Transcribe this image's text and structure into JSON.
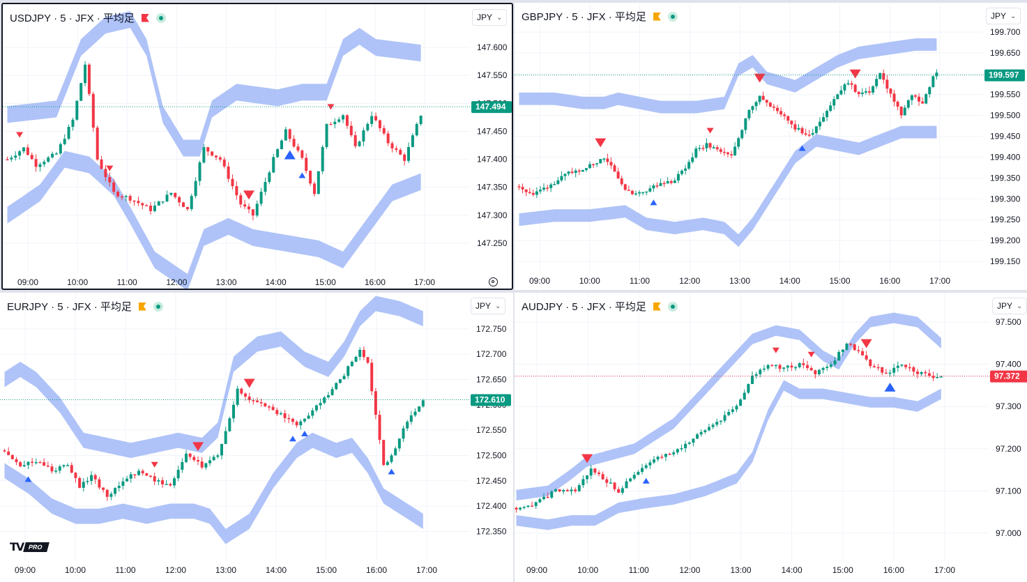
{
  "colors": {
    "up": "#089981",
    "down": "#f23645",
    "band": "#a6bdf7",
    "buy": "#2962ff",
    "sell": "#f23645",
    "grid": "#f0f3fa",
    "text": "#131722"
  },
  "chart_data": [
    {
      "type": "candlestick",
      "symbol": "USDJPY",
      "interval": "5",
      "source": "JFX",
      "style": "平均足",
      "title": "USDJPY · 5 · JFX · 平均足",
      "flag_color": "#f23645",
      "currency": "JPY",
      "ylim": [
        147.2,
        147.64
      ],
      "y_ticks": [
        "147.600",
        "147.550",
        "147.500",
        "147.450",
        "147.400",
        "147.350",
        "147.300",
        "147.250"
      ],
      "x_ticks": [
        "09:00",
        "10:00",
        "11:00",
        "12:00",
        "13:00",
        "14:00",
        "15:00",
        "16:00",
        "17:00"
      ],
      "last_price": "147.494",
      "last_dir": "up",
      "path": [
        [
          0,
          147.4
        ],
        [
          4,
          147.42
        ],
        [
          7,
          147.39
        ],
        [
          12,
          147.41
        ],
        [
          16,
          147.47
        ],
        [
          19,
          147.57
        ],
        [
          22,
          147.4
        ],
        [
          26,
          147.34
        ],
        [
          30,
          147.33
        ],
        [
          35,
          147.31
        ],
        [
          40,
          147.34
        ],
        [
          44,
          147.31
        ],
        [
          48,
          147.42
        ],
        [
          52,
          147.4
        ],
        [
          57,
          147.32
        ],
        [
          60,
          147.3
        ],
        [
          65,
          147.4
        ],
        [
          68,
          147.45
        ],
        [
          72,
          147.4
        ],
        [
          75,
          147.34
        ],
        [
          78,
          147.46
        ],
        [
          82,
          147.48
        ],
        [
          85,
          147.42
        ],
        [
          89,
          147.48
        ],
        [
          93,
          147.43
        ],
        [
          97,
          147.4
        ],
        [
          101,
          147.48
        ]
      ],
      "upper": [
        [
          0,
          147.48
        ],
        [
          12,
          147.49
        ],
        [
          18,
          147.6
        ],
        [
          24,
          147.64
        ],
        [
          30,
          147.65
        ],
        [
          34,
          147.6
        ],
        [
          38,
          147.48
        ],
        [
          43,
          147.42
        ],
        [
          47,
          147.42
        ],
        [
          50,
          147.49
        ],
        [
          56,
          147.52
        ],
        [
          66,
          147.51
        ],
        [
          72,
          147.52
        ],
        [
          78,
          147.52
        ],
        [
          82,
          147.6
        ],
        [
          86,
          147.62
        ],
        [
          90,
          147.6
        ],
        [
          101,
          147.59
        ]
      ],
      "lower": [
        [
          0,
          147.3
        ],
        [
          8,
          147.34
        ],
        [
          14,
          147.4
        ],
        [
          20,
          147.39
        ],
        [
          26,
          147.35
        ],
        [
          30,
          147.3
        ],
        [
          36,
          147.22
        ],
        [
          44,
          147.18
        ],
        [
          48,
          147.26
        ],
        [
          54,
          147.28
        ],
        [
          60,
          147.26
        ],
        [
          68,
          147.25
        ],
        [
          76,
          147.24
        ],
        [
          82,
          147.22
        ],
        [
          88,
          147.28
        ],
        [
          94,
          147.34
        ],
        [
          101,
          147.36
        ]
      ],
      "band_width": 0.03,
      "signals": [
        {
          "i": 3,
          "dir": "sell",
          "size": "small"
        },
        {
          "i": 25,
          "dir": "sell",
          "size": "small"
        },
        {
          "i": 59,
          "dir": "sell",
          "size": "big"
        },
        {
          "i": 69,
          "dir": "buy",
          "size": "big"
        },
        {
          "i": 72,
          "dir": "buy",
          "size": "small"
        },
        {
          "i": 79,
          "dir": "sell",
          "size": "small"
        }
      ]
    },
    {
      "type": "candlestick",
      "symbol": "GBPJPY",
      "interval": "5",
      "source": "JFX",
      "style": "平均足",
      "title": "GBPJPY · 5 · JFX · 平均足",
      "flag_color": "#f7a600",
      "currency": "JPY",
      "ylim": [
        199.13,
        199.72
      ],
      "y_ticks": [
        "199.700",
        "199.650",
        "199.600",
        "199.550",
        "199.500",
        "199.450",
        "199.400",
        "199.350",
        "199.300",
        "199.250",
        "199.200",
        "199.150"
      ],
      "x_ticks": [
        "09:00",
        "10:00",
        "11:00",
        "12:00",
        "13:00",
        "14:00",
        "15:00",
        "16:00",
        "17:00"
      ],
      "last_price": "199.597",
      "last_dir": "up",
      "path": [
        [
          0,
          199.33
        ],
        [
          4,
          199.31
        ],
        [
          8,
          199.33
        ],
        [
          14,
          199.36
        ],
        [
          20,
          199.38
        ],
        [
          24,
          199.4
        ],
        [
          27,
          199.37
        ],
        [
          29,
          199.33
        ],
        [
          33,
          199.31
        ],
        [
          38,
          199.33
        ],
        [
          43,
          199.34
        ],
        [
          47,
          199.37
        ],
        [
          50,
          199.42
        ],
        [
          53,
          199.43
        ],
        [
          57,
          199.41
        ],
        [
          60,
          199.4
        ],
        [
          62,
          199.45
        ],
        [
          65,
          199.51
        ],
        [
          68,
          199.55
        ],
        [
          71,
          199.52
        ],
        [
          75,
          199.5
        ],
        [
          78,
          199.47
        ],
        [
          82,
          199.45
        ],
        [
          86,
          199.5
        ],
        [
          90,
          199.55
        ],
        [
          93,
          199.58
        ],
        [
          96,
          199.55
        ],
        [
          99,
          199.56
        ],
        [
          102,
          199.6
        ],
        [
          105,
          199.55
        ],
        [
          108,
          199.5
        ],
        [
          111,
          199.55
        ],
        [
          114,
          199.53
        ],
        [
          117,
          199.59
        ],
        [
          118,
          199.6
        ]
      ],
      "upper": [
        [
          0,
          199.54
        ],
        [
          10,
          199.54
        ],
        [
          18,
          199.53
        ],
        [
          24,
          199.53
        ],
        [
          28,
          199.54
        ],
        [
          34,
          199.53
        ],
        [
          40,
          199.52
        ],
        [
          50,
          199.52
        ],
        [
          58,
          199.53
        ],
        [
          62,
          199.61
        ],
        [
          66,
          199.63
        ],
        [
          70,
          199.59
        ],
        [
          78,
          199.57
        ],
        [
          84,
          199.6
        ],
        [
          90,
          199.63
        ],
        [
          96,
          199.65
        ],
        [
          104,
          199.66
        ],
        [
          112,
          199.67
        ],
        [
          118,
          199.67
        ]
      ],
      "lower": [
        [
          0,
          199.25
        ],
        [
          10,
          199.26
        ],
        [
          20,
          199.26
        ],
        [
          30,
          199.27
        ],
        [
          36,
          199.24
        ],
        [
          44,
          199.23
        ],
        [
          52,
          199.24
        ],
        [
          58,
          199.23
        ],
        [
          62,
          199.2
        ],
        [
          66,
          199.24
        ],
        [
          72,
          199.32
        ],
        [
          78,
          199.4
        ],
        [
          84,
          199.44
        ],
        [
          90,
          199.43
        ],
        [
          96,
          199.42
        ],
        [
          102,
          199.44
        ],
        [
          108,
          199.46
        ],
        [
          118,
          199.46
        ]
      ],
      "band_width": 0.03,
      "signals": [
        {
          "i": 23,
          "dir": "sell",
          "size": "big"
        },
        {
          "i": 38,
          "dir": "buy",
          "size": "small"
        },
        {
          "i": 54,
          "dir": "sell",
          "size": "small"
        },
        {
          "i": 68,
          "dir": "sell",
          "size": "big"
        },
        {
          "i": 80,
          "dir": "buy",
          "size": "small"
        },
        {
          "i": 95,
          "dir": "sell",
          "size": "big"
        }
      ]
    },
    {
      "type": "candlestick",
      "symbol": "EURJPY",
      "interval": "5",
      "source": "JFX",
      "style": "平均足",
      "title": "EURJPY · 5 · JFX · 平均足",
      "flag_color": "#f7a600",
      "currency": "JPY",
      "ylim": [
        172.33,
        172.78
      ],
      "y_ticks": [
        "172.750",
        "172.700",
        "172.650",
        "172.600",
        "172.550",
        "172.500",
        "172.450",
        "172.400",
        "172.350"
      ],
      "x_ticks": [
        "09:00",
        "10:00",
        "11:00",
        "12:00",
        "13:00",
        "14:00",
        "15:00",
        "16:00",
        "17:00"
      ],
      "last_price": "172.610",
      "last_dir": "up",
      "path": [
        [
          0,
          172.51
        ],
        [
          4,
          172.48
        ],
        [
          8,
          172.49
        ],
        [
          12,
          172.47
        ],
        [
          16,
          172.48
        ],
        [
          19,
          172.44
        ],
        [
          22,
          172.46
        ],
        [
          26,
          172.42
        ],
        [
          30,
          172.45
        ],
        [
          34,
          172.47
        ],
        [
          38,
          172.45
        ],
        [
          42,
          172.44
        ],
        [
          46,
          172.5
        ],
        [
          50,
          172.48
        ],
        [
          54,
          172.5
        ],
        [
          56,
          172.55
        ],
        [
          59,
          172.63
        ],
        [
          62,
          172.61
        ],
        [
          66,
          172.6
        ],
        [
          70,
          172.58
        ],
        [
          74,
          172.56
        ],
        [
          78,
          172.59
        ],
        [
          82,
          172.62
        ],
        [
          86,
          172.66
        ],
        [
          90,
          172.71
        ],
        [
          92,
          172.68
        ],
        [
          94,
          172.58
        ],
        [
          96,
          172.48
        ],
        [
          98,
          172.5
        ],
        [
          101,
          172.55
        ],
        [
          104,
          172.59
        ],
        [
          106,
          172.61
        ]
      ],
      "upper": [
        [
          0,
          172.65
        ],
        [
          4,
          172.67
        ],
        [
          8,
          172.65
        ],
        [
          14,
          172.6
        ],
        [
          20,
          172.53
        ],
        [
          26,
          172.52
        ],
        [
          32,
          172.51
        ],
        [
          38,
          172.52
        ],
        [
          44,
          172.53
        ],
        [
          50,
          172.52
        ],
        [
          54,
          172.55
        ],
        [
          58,
          172.68
        ],
        [
          64,
          172.72
        ],
        [
          70,
          172.73
        ],
        [
          76,
          172.69
        ],
        [
          82,
          172.67
        ],
        [
          86,
          172.71
        ],
        [
          90,
          172.77
        ],
        [
          94,
          172.8
        ],
        [
          100,
          172.79
        ],
        [
          106,
          172.77
        ]
      ],
      "lower": [
        [
          0,
          172.47
        ],
        [
          6,
          172.44
        ],
        [
          12,
          172.4
        ],
        [
          18,
          172.38
        ],
        [
          24,
          172.38
        ],
        [
          30,
          172.39
        ],
        [
          36,
          172.38
        ],
        [
          42,
          172.39
        ],
        [
          48,
          172.39
        ],
        [
          52,
          172.38
        ],
        [
          56,
          172.34
        ],
        [
          62,
          172.37
        ],
        [
          68,
          172.45
        ],
        [
          74,
          172.51
        ],
        [
          78,
          172.53
        ],
        [
          84,
          172.51
        ],
        [
          88,
          172.52
        ],
        [
          92,
          172.48
        ],
        [
          96,
          172.42
        ],
        [
          100,
          172.4
        ],
        [
          106,
          172.37
        ]
      ],
      "band_width": 0.03,
      "signals": [
        {
          "i": 6,
          "dir": "buy",
          "size": "small"
        },
        {
          "i": 38,
          "dir": "sell",
          "size": "small"
        },
        {
          "i": 49,
          "dir": "sell",
          "size": "big"
        },
        {
          "i": 62,
          "dir": "sell",
          "size": "big"
        },
        {
          "i": 73,
          "dir": "buy",
          "size": "small"
        },
        {
          "i": 76,
          "dir": "buy",
          "size": "small"
        },
        {
          "i": 98,
          "dir": "buy",
          "size": "small"
        }
      ]
    },
    {
      "type": "candlestick",
      "symbol": "AUDJPY",
      "interval": "5",
      "source": "JFX",
      "style": "平均足",
      "title": "AUDJPY · 5 · JFX · 平均足",
      "flag_color": "#f7a600",
      "currency": "JPY",
      "ylim": [
        96.98,
        97.52
      ],
      "y_ticks": [
        "97.500",
        "97.400",
        "97.372",
        "97.300",
        "97.200",
        "97.100",
        "97.000"
      ],
      "x_ticks": [
        "09:00",
        "10:00",
        "11:00",
        "12:00",
        "13:00",
        "14:00",
        "15:00",
        "16:00",
        "17:00"
      ],
      "last_price": "97.372",
      "last_dir": "down",
      "path": [
        [
          0,
          97.06
        ],
        [
          5,
          97.07
        ],
        [
          10,
          97.1
        ],
        [
          15,
          97.1
        ],
        [
          19,
          97.15
        ],
        [
          22,
          97.13
        ],
        [
          26,
          97.1
        ],
        [
          29,
          97.13
        ],
        [
          34,
          97.17
        ],
        [
          40,
          97.19
        ],
        [
          46,
          97.23
        ],
        [
          52,
          97.27
        ],
        [
          56,
          97.3
        ],
        [
          60,
          97.37
        ],
        [
          64,
          97.4
        ],
        [
          68,
          97.39
        ],
        [
          72,
          97.4
        ],
        [
          76,
          97.38
        ],
        [
          80,
          97.4
        ],
        [
          84,
          97.45
        ],
        [
          87,
          97.43
        ],
        [
          90,
          97.4
        ],
        [
          94,
          97.38
        ],
        [
          98,
          97.4
        ],
        [
          102,
          97.38
        ],
        [
          106,
          97.37
        ],
        [
          108,
          97.37
        ]
      ],
      "upper": [
        [
          0,
          97.09
        ],
        [
          8,
          97.1
        ],
        [
          14,
          97.14
        ],
        [
          18,
          97.17
        ],
        [
          22,
          97.18
        ],
        [
          30,
          97.2
        ],
        [
          40,
          97.26
        ],
        [
          48,
          97.34
        ],
        [
          54,
          97.4
        ],
        [
          60,
          97.46
        ],
        [
          66,
          97.48
        ],
        [
          72,
          97.47
        ],
        [
          78,
          97.42
        ],
        [
          82,
          97.4
        ],
        [
          86,
          97.46
        ],
        [
          90,
          97.5
        ],
        [
          96,
          97.51
        ],
        [
          102,
          97.5
        ],
        [
          108,
          97.45
        ]
      ],
      "lower": [
        [
          0,
          97.03
        ],
        [
          8,
          97.02
        ],
        [
          14,
          97.03
        ],
        [
          20,
          97.03
        ],
        [
          26,
          97.06
        ],
        [
          32,
          97.07
        ],
        [
          40,
          97.08
        ],
        [
          48,
          97.1
        ],
        [
          56,
          97.13
        ],
        [
          60,
          97.18
        ],
        [
          64,
          97.28
        ],
        [
          68,
          97.35
        ],
        [
          72,
          97.33
        ],
        [
          78,
          97.33
        ],
        [
          84,
          97.32
        ],
        [
          90,
          97.31
        ],
        [
          96,
          97.31
        ],
        [
          102,
          97.3
        ],
        [
          108,
          97.33
        ]
      ],
      "band_width": 0.025,
      "signals": [
        {
          "i": 18,
          "dir": "sell",
          "size": "big"
        },
        {
          "i": 33,
          "dir": "buy",
          "size": "small"
        },
        {
          "i": 66,
          "dir": "sell",
          "size": "small"
        },
        {
          "i": 75,
          "dir": "sell",
          "size": "small"
        },
        {
          "i": 89,
          "dir": "sell",
          "size": "big"
        },
        {
          "i": 95,
          "dir": "buy",
          "size": "big"
        }
      ]
    }
  ]
}
